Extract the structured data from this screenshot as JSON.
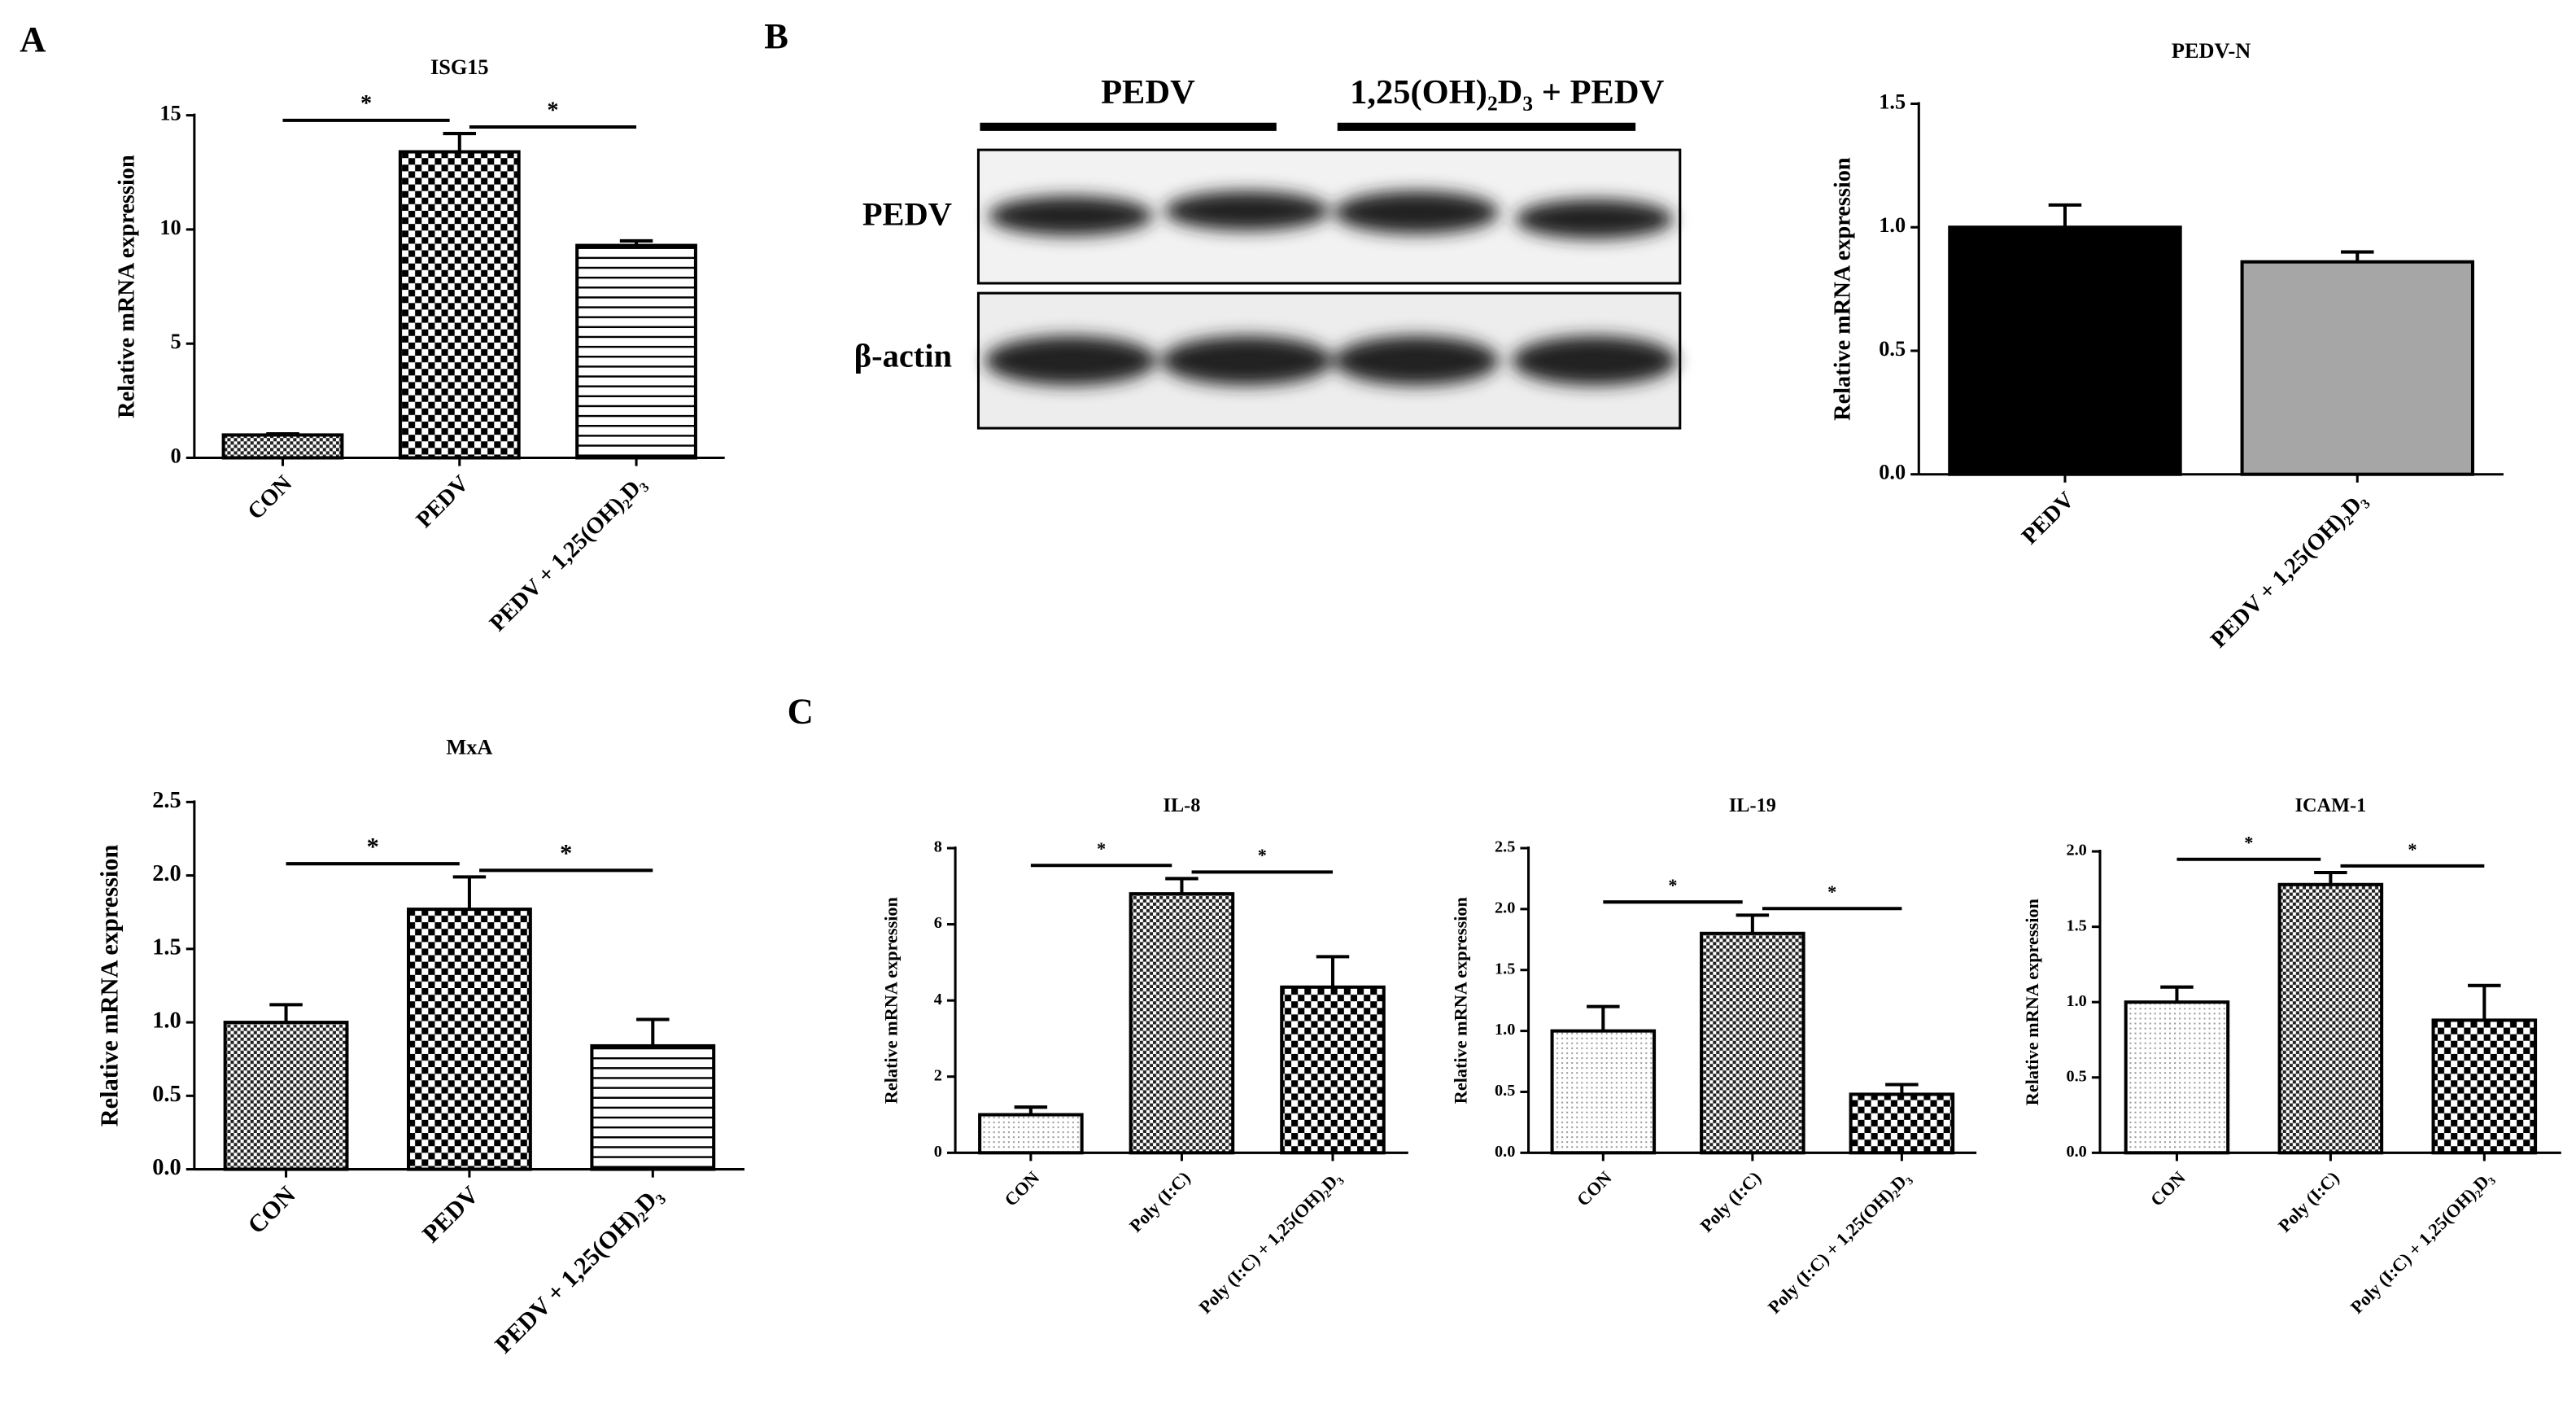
{
  "panel_labels": [
    "A",
    "B",
    "C"
  ],
  "blot": {
    "lane_groups": [
      "PEDV",
      "1,25(OH)₂D₃ + PEDV"
    ],
    "rows": [
      "PEDV",
      "β-actin"
    ]
  },
  "chart_data": [
    {
      "type": "bar",
      "title": "ISG15",
      "y_label": "Relative mRNA expression",
      "categories": [
        "CON",
        "PEDV",
        "PEDV + 1,25(OH)₂D₃"
      ],
      "values": [
        1.0,
        13.4,
        9.3
      ],
      "errors": [
        0.05,
        0.8,
        0.2
      ],
      "patterns": [
        "checker-fine",
        "checker",
        "hstripes"
      ],
      "ylim": [
        0,
        15
      ],
      "yticks": [
        0,
        5,
        10,
        15
      ],
      "significance": [
        {
          "between": [
            "CON",
            "PEDV"
          ],
          "label": "*"
        },
        {
          "between": [
            "PEDV",
            "PEDV + 1,25(OH)₂D₃"
          ],
          "label": "*"
        }
      ]
    },
    {
      "type": "bar",
      "title": "PEDV-N",
      "y_label": "Relative mRNA expression",
      "categories": [
        "PEDV",
        "PEDV + 1,25(OH)₂D₃"
      ],
      "values": [
        1.0,
        0.86
      ],
      "errors": [
        0.09,
        0.04
      ],
      "patterns": [
        "solid",
        "solid"
      ],
      "colors": [
        "#000000",
        "#a6a6a6"
      ],
      "ylim": [
        0,
        1.5
      ],
      "yticks": [
        {
          "value": 0,
          "label": "0.0"
        },
        {
          "value": 0.5,
          "label": "0.5"
        },
        {
          "value": 1,
          "label": "1.0"
        },
        {
          "value": 1.5,
          "label": "1.5"
        }
      ]
    },
    {
      "type": "bar",
      "title": "MxA",
      "y_label": "Relative mRNA expression",
      "categories": [
        "CON",
        "PEDV",
        "PEDV + 1,25(OH)₂D₃"
      ],
      "values": [
        1.0,
        1.77,
        0.84
      ],
      "errors": [
        0.12,
        0.22,
        0.18
      ],
      "patterns": [
        "checker-fine",
        "checker",
        "hstripes"
      ],
      "ylim": [
        0,
        2.5
      ],
      "yticks": [
        {
          "value": 0,
          "label": "0.0"
        },
        {
          "value": 0.5,
          "label": "0.5"
        },
        {
          "value": 1,
          "label": "1.0"
        },
        {
          "value": 1.5,
          "label": "1.5"
        },
        {
          "value": 2,
          "label": "2.0"
        },
        {
          "value": 2.5,
          "label": "2.5"
        }
      ],
      "significance": [
        {
          "between": [
            "CON",
            "PEDV"
          ],
          "label": "*"
        },
        {
          "between": [
            "PEDV",
            "PEDV + 1,25(OH)₂D₃"
          ],
          "label": "*"
        }
      ]
    },
    {
      "type": "bar",
      "title": "IL-8",
      "y_label": "Relative mRNA expression",
      "categories": [
        "CON",
        "Poly (I:C)",
        "Poly (I:C) + 1,25(OH)₂D₃"
      ],
      "values": [
        1.0,
        6.8,
        4.35
      ],
      "errors": [
        0.2,
        0.4,
        0.8
      ],
      "patterns": [
        "dots",
        "checker-fine",
        "checker"
      ],
      "ylim": [
        0,
        8
      ],
      "yticks": [
        0,
        2,
        4,
        6,
        8
      ],
      "significance": [
        {
          "between": [
            "CON",
            "Poly (I:C)"
          ],
          "label": "*"
        },
        {
          "between": [
            "Poly (I:C)",
            "Poly (I:C) + 1,25(OH)₂D₃"
          ],
          "label": "*"
        }
      ]
    },
    {
      "type": "bar",
      "title": "IL-19",
      "y_label": "Relative mRNA expression",
      "categories": [
        "CON",
        "Poly (I:C)",
        "Poly (I:C) + 1,25(OH)₂D₃"
      ],
      "values": [
        1.0,
        1.8,
        0.48
      ],
      "errors": [
        0.2,
        0.15,
        0.08
      ],
      "patterns": [
        "dots",
        "checker-fine",
        "checker"
      ],
      "ylim": [
        0,
        2.5
      ],
      "yticks": [
        {
          "value": 0,
          "label": "0.0"
        },
        {
          "value": 0.5,
          "label": "0.5"
        },
        {
          "value": 1,
          "label": "1.0"
        },
        {
          "value": 1.5,
          "label": "1.5"
        },
        {
          "value": 2,
          "label": "2.0"
        },
        {
          "value": 2.5,
          "label": "2.5"
        }
      ],
      "significance": [
        {
          "between": [
            "CON",
            "Poly (I:C)"
          ],
          "label": "*"
        },
        {
          "between": [
            "Poly (I:C)",
            "Poly (I:C) + 1,25(OH)₂D₃"
          ],
          "label": "*"
        }
      ]
    },
    {
      "type": "bar",
      "title": "ICAM-1",
      "y_label": "Relative mRNA expression",
      "categories": [
        "CON",
        "Poly (I:C)",
        "Poly (I:C) + 1,25(OH)₂D₃"
      ],
      "values": [
        1.0,
        1.78,
        0.88
      ],
      "errors": [
        0.1,
        0.08,
        0.23
      ],
      "patterns": [
        "dots",
        "checker-fine",
        "checker"
      ],
      "ylim": [
        0,
        2.0
      ],
      "yticks": [
        {
          "value": 0,
          "label": "0.0"
        },
        {
          "value": 0.5,
          "label": "0.5"
        },
        {
          "value": 1,
          "label": "1.0"
        },
        {
          "value": 1.5,
          "label": "1.5"
        },
        {
          "value": 2,
          "label": "2.0"
        }
      ],
      "significance": [
        {
          "between": [
            "CON",
            "Poly (I:C)"
          ],
          "label": "*"
        },
        {
          "between": [
            "Poly (I:C)",
            "Poly (I:C) + 1,25(OH)₂D₃"
          ],
          "label": "*"
        }
      ]
    }
  ]
}
